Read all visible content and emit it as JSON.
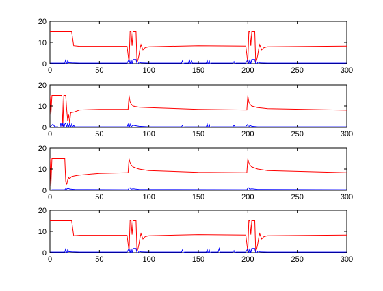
{
  "chart_data": [
    {
      "type": "line",
      "xlim": [
        0,
        300
      ],
      "ylim": [
        0,
        20
      ],
      "xticks": [
        0,
        50,
        100,
        150,
        200,
        250,
        300
      ],
      "yticks": [
        0,
        10,
        20
      ],
      "series": [
        {
          "color": "#ff0000",
          "x": [
            0,
            22,
            24,
            30,
            78,
            80,
            81,
            82,
            83,
            84,
            85,
            86,
            87,
            88,
            89,
            90,
            91,
            92,
            94,
            96,
            100,
            150,
            198,
            200,
            201,
            202,
            203,
            204,
            205,
            206,
            207,
            208,
            209,
            210,
            211,
            212,
            214,
            216,
            220,
            300
          ],
          "y": [
            15,
            15,
            8.5,
            8.2,
            8.2,
            0.5,
            15,
            15,
            8.5,
            15,
            15,
            15,
            15,
            0.5,
            2,
            4,
            7,
            9,
            6.5,
            7.5,
            8.0,
            8.5,
            8.3,
            0.5,
            15,
            15,
            8.5,
            15,
            15,
            15,
            15,
            0.5,
            2,
            4,
            7,
            9,
            6.5,
            7.5,
            8.0,
            8.3
          ]
        },
        {
          "color": "#0000ff",
          "x": [
            0,
            15,
            16,
            17,
            18,
            19,
            22,
            30,
            78,
            80,
            81,
            82,
            83,
            84,
            86,
            87,
            88,
            89,
            90,
            92,
            100,
            133,
            134,
            135,
            136,
            140,
            141,
            142,
            143,
            144,
            150,
            158,
            159,
            160,
            161,
            162,
            163,
            170,
            185,
            186,
            187,
            188,
            198,
            200,
            201,
            202,
            203,
            204,
            206,
            207,
            208,
            209,
            210,
            212,
            220,
            300
          ],
          "y": [
            0.3,
            0.3,
            2,
            -0.5,
            1.5,
            0.5,
            0.4,
            0.3,
            0.3,
            2,
            0,
            2,
            0,
            2,
            2,
            2,
            0,
            -0.5,
            0.8,
            0.4,
            0.3,
            0.3,
            1.5,
            -0.5,
            0.3,
            0.3,
            2,
            -0.5,
            1.5,
            0.3,
            0.3,
            0.3,
            1.5,
            -0.5,
            1.5,
            -0.5,
            0.3,
            0.3,
            0.3,
            1,
            0,
            0.3,
            0.3,
            2,
            0,
            2,
            0,
            2,
            2,
            2,
            0,
            -0.5,
            0.8,
            0.4,
            0.3,
            0.3
          ]
        }
      ]
    },
    {
      "type": "line",
      "xlim": [
        0,
        300
      ],
      "ylim": [
        0,
        20
      ],
      "xticks": [
        0,
        50,
        100,
        150,
        200,
        250,
        300
      ],
      "yticks": [
        0,
        10,
        20
      ],
      "series": [
        {
          "color": "#ff0000",
          "x": [
            0,
            1,
            2,
            8,
            9,
            10,
            11,
            12,
            13,
            14,
            15,
            16,
            17,
            18,
            19,
            20,
            21,
            22,
            24,
            30,
            50,
            78,
            79,
            80,
            81,
            82,
            84,
            90,
            100,
            150,
            198,
            199,
            200,
            201,
            202,
            204,
            210,
            220,
            300
          ],
          "y": [
            15,
            6,
            15,
            15,
            15,
            15,
            15,
            15,
            0.5,
            15,
            15,
            15,
            8,
            3,
            6,
            2,
            7,
            7,
            7.2,
            8.2,
            8.5,
            8.5,
            8.5,
            15,
            12,
            11,
            10,
            9.5,
            9.3,
            8.5,
            8.2,
            8.2,
            15,
            12,
            11,
            10,
            9.3,
            8.8,
            8.1
          ]
        },
        {
          "color": "#0000ff",
          "x": [
            0,
            3,
            5,
            8,
            10,
            11,
            12,
            13,
            14,
            15,
            16,
            17,
            18,
            19,
            20,
            21,
            22,
            23,
            24,
            25,
            30,
            78,
            79,
            80,
            81,
            82,
            84,
            90,
            100,
            133,
            134,
            135,
            136,
            150,
            158,
            159,
            160,
            161,
            162,
            163,
            170,
            185,
            186,
            187,
            198,
            199,
            200,
            201,
            202,
            204,
            210,
            300
          ],
          "y": [
            0.2,
            1.5,
            0.3,
            0.3,
            -0.5,
            2,
            0,
            2,
            -0.5,
            1.5,
            2,
            0,
            2,
            0,
            2,
            0,
            1.5,
            0,
            1,
            0.3,
            0.3,
            0.3,
            1.5,
            -0.5,
            1.5,
            0.3,
            1,
            0.5,
            0.3,
            0.3,
            1,
            0,
            0.3,
            0.3,
            0.3,
            1.5,
            -0.5,
            1.5,
            -0.5,
            0.3,
            0.3,
            0.3,
            1,
            0.3,
            0.3,
            1,
            1.5,
            -0.5,
            1,
            0.5,
            0.3,
            0.3
          ]
        }
      ]
    },
    {
      "type": "line",
      "xlim": [
        0,
        300
      ],
      "ylim": [
        0,
        20
      ],
      "xticks": [
        0,
        50,
        100,
        150,
        200,
        250,
        300
      ],
      "yticks": [
        0,
        10,
        20
      ],
      "series": [
        {
          "color": "#ff0000",
          "x": [
            0,
            1,
            2,
            15,
            16,
            17,
            18,
            19,
            20,
            22,
            25,
            30,
            50,
            78,
            79,
            80,
            81,
            82,
            84,
            90,
            100,
            150,
            198,
            199,
            200,
            201,
            202,
            204,
            210,
            220,
            300
          ],
          "y": [
            15,
            2,
            15,
            15,
            4,
            3,
            5,
            6,
            5.5,
            6.5,
            6.8,
            7.2,
            8,
            8.3,
            8.3,
            15,
            13,
            12,
            11,
            10,
            9.3,
            8.5,
            8.3,
            8.3,
            15,
            13,
            12,
            11,
            10,
            9.3,
            8.3
          ]
        },
        {
          "color": "#0000ff",
          "x": [
            0,
            1,
            2,
            15,
            16,
            17,
            18,
            20,
            25,
            78,
            79,
            80,
            81,
            82,
            84,
            90,
            198,
            199,
            200,
            201,
            202,
            204,
            210,
            300
          ],
          "y": [
            0.2,
            -0.5,
            0.3,
            0.3,
            0.8,
            0.5,
            1,
            0.6,
            0.4,
            0.3,
            0.3,
            1,
            1.2,
            0.5,
            0.7,
            0.4,
            0.3,
            0.3,
            1,
            1.2,
            0.5,
            0.7,
            0.4,
            0.3
          ]
        }
      ]
    },
    {
      "type": "line",
      "xlim": [
        0,
        300
      ],
      "ylim": [
        0,
        20
      ],
      "xticks": [
        0,
        50,
        100,
        150,
        200,
        250,
        300
      ],
      "yticks": [
        0,
        10,
        20
      ],
      "series": [
        {
          "color": "#ff0000",
          "x": [
            0,
            22,
            24,
            30,
            78,
            80,
            81,
            82,
            83,
            84,
            85,
            86,
            87,
            88,
            89,
            90,
            91,
            92,
            94,
            96,
            100,
            150,
            198,
            200,
            201,
            202,
            203,
            204,
            205,
            206,
            207,
            208,
            209,
            210,
            211,
            212,
            214,
            216,
            220,
            300
          ],
          "y": [
            15,
            15,
            8.0,
            8.2,
            8.2,
            0.5,
            15,
            15,
            8.5,
            15,
            15,
            15,
            15,
            0.5,
            2,
            4,
            7,
            9,
            6.5,
            7.5,
            8.0,
            8.5,
            8.3,
            0.5,
            15,
            15,
            8.5,
            15,
            15,
            15,
            15,
            0.5,
            2,
            4,
            7,
            9,
            6.5,
            7.5,
            8.0,
            8.3
          ]
        },
        {
          "color": "#0000ff",
          "x": [
            0,
            15,
            16,
            17,
            18,
            19,
            22,
            30,
            78,
            80,
            81,
            82,
            83,
            84,
            86,
            87,
            88,
            89,
            90,
            92,
            100,
            133,
            134,
            135,
            136,
            150,
            158,
            159,
            160,
            161,
            162,
            163,
            170,
            171,
            172,
            185,
            186,
            187,
            188,
            198,
            200,
            201,
            202,
            203,
            204,
            206,
            207,
            208,
            209,
            210,
            212,
            220,
            300
          ],
          "y": [
            0.3,
            0.3,
            2,
            -0.5,
            1.5,
            0.5,
            0.4,
            0.3,
            0.3,
            2,
            0,
            2,
            0,
            2,
            2,
            2,
            0,
            -0.5,
            0.8,
            0.4,
            0.3,
            0.3,
            1.5,
            -0.5,
            0.3,
            0.3,
            0.3,
            1.5,
            -0.5,
            1.5,
            -0.5,
            0.3,
            0.3,
            2,
            0.3,
            0.3,
            1,
            0,
            0.3,
            0.3,
            2,
            0,
            2,
            0,
            2,
            2,
            2,
            0,
            -0.5,
            0.8,
            0.4,
            0.3,
            0.3
          ]
        }
      ]
    }
  ]
}
